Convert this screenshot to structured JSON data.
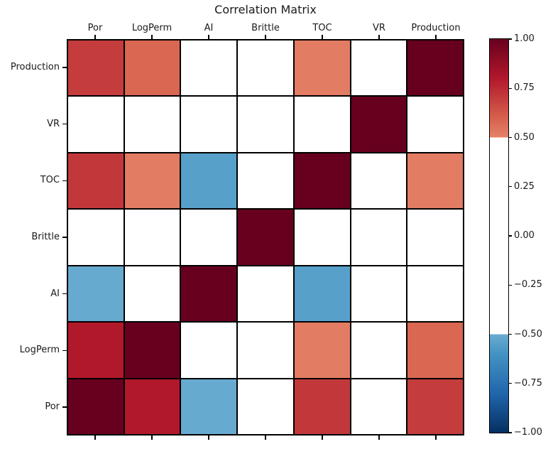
{
  "chart_data": {
    "type": "heatmap",
    "title": "Correlation Matrix",
    "x_labels_left_to_right": [
      "Por",
      "LogPerm",
      "AI",
      "Brittle",
      "TOC",
      "VR",
      "Production"
    ],
    "y_labels_top_to_bottom": [
      "Production",
      "VR",
      "TOC",
      "Brittle",
      "AI",
      "LogPerm",
      "Por"
    ],
    "matrix_rows_top_to_bottom": [
      [
        0.7,
        0.58,
        null,
        null,
        0.52,
        null,
        1.0
      ],
      [
        null,
        null,
        null,
        null,
        null,
        1.0,
        null
      ],
      [
        0.71,
        0.52,
        -0.55,
        null,
        1.0,
        null,
        0.52
      ],
      [
        null,
        null,
        null,
        1.0,
        null,
        null,
        null
      ],
      [
        -0.51,
        null,
        1.0,
        null,
        -0.55,
        null,
        null
      ],
      [
        0.8,
        1.0,
        null,
        null,
        0.52,
        null,
        0.58
      ],
      [
        1.0,
        0.8,
        -0.51,
        null,
        0.71,
        null,
        0.7
      ]
    ],
    "value_note": "null cells rendered white: |correlation| below mask threshold",
    "colormap": "RdBu_r",
    "vmin": -1.0,
    "vmax": 1.0,
    "mask_abs_threshold": 0.5,
    "masked_color": "#ffffff",
    "grid_line_color": "#000000",
    "colormap_anchors_low_to_high": [
      "#053061",
      "#2166AC",
      "#4393C3",
      "#92C5DE",
      "#D1E5F0",
      "#F7F7F7",
      "#FDDBC7",
      "#F4A582",
      "#D6604D",
      "#B2182B",
      "#67001F"
    ],
    "colorbar": {
      "tick_labels_top_to_bottom": [
        "1.00",
        "0.75",
        "0.50",
        "0.25",
        "0.00",
        "−0.25",
        "−0.50",
        "−0.75",
        "−1.00"
      ],
      "top_color": "#67001F",
      "bottom_color": "#053061"
    },
    "legend_position": "right-colorbar",
    "grid_on": true
  }
}
